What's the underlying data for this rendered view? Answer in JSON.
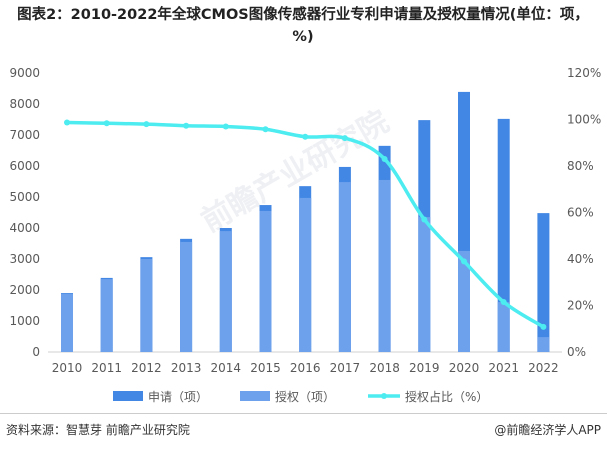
{
  "chart_data": {
    "type": "bar",
    "title": "图表2：2010-2022年全球CMOS图像传感器行业专利申请量及授权量情况(单位：项，%)",
    "categories": [
      "2010",
      "2011",
      "2012",
      "2013",
      "2014",
      "2015",
      "2016",
      "2017",
      "2018",
      "2019",
      "2020",
      "2021",
      "2022"
    ],
    "series": [
      {
        "name": "申请（项）",
        "type": "bar",
        "axis": "left",
        "color": "#4287e3",
        "values": [
          1900,
          2390,
          3060,
          3650,
          4000,
          4740,
          5350,
          5970,
          6650,
          7480,
          8390,
          7520,
          4480
        ]
      },
      {
        "name": "授权（项）",
        "type": "bar",
        "axis": "left",
        "color": "#6ea1ec",
        "values": [
          1870,
          2350,
          3000,
          3550,
          3900,
          4550,
          4970,
          5480,
          5550,
          4350,
          3260,
          1610,
          480
        ]
      },
      {
        "name": "授权占比（%）",
        "type": "line",
        "axis": "right",
        "color": "#4cecf0",
        "values": [
          98.7,
          98.4,
          98,
          97.3,
          97,
          95.8,
          92.6,
          92,
          83,
          57,
          39,
          21.5,
          10.8
        ]
      }
    ],
    "ylim": [
      0,
      9000
    ],
    "yticks": [
      "0",
      "1000",
      "2000",
      "3000",
      "4000",
      "5000",
      "6000",
      "7000",
      "8000",
      "9000"
    ],
    "y2lim": [
      0,
      120
    ],
    "y2ticks": [
      "0%",
      "20%",
      "40%",
      "60%",
      "80%",
      "100%",
      "120%"
    ],
    "legend": "bottom",
    "grid": false
  },
  "footer": {
    "source": "资料来源：智慧芽 前瞻产业研究院",
    "brand": "@前瞻经济学人APP"
  },
  "watermark": "前瞻产业研究院"
}
